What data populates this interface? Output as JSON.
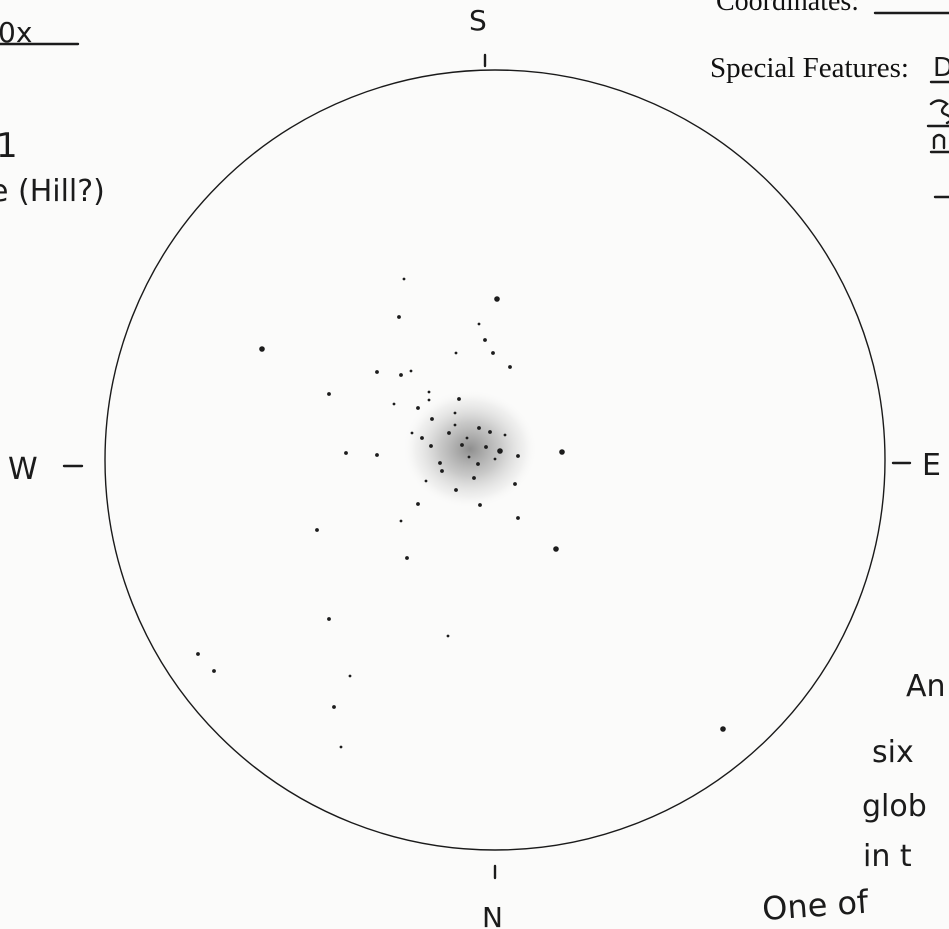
{
  "header": {
    "coordinates_label": "Coordinates:",
    "magnification_fragment": "0x",
    "special_features_label": "Special Features:",
    "special_features_fragment": "D"
  },
  "left_notes": {
    "line_1_fragment": "1",
    "line_2_fragment": "e (Hill?)"
  },
  "compass": {
    "top": "S",
    "bottom": "N",
    "left": "W",
    "right": "E"
  },
  "right_notes": {
    "line_1_fragment": "An",
    "line_2_fragment": "six",
    "line_3_fragment": "glob",
    "line_4_fragment": "in t",
    "line_5_fragment": "One of"
  },
  "field_of_view": {
    "star_count": 60,
    "has_central_cluster_glow": true
  }
}
